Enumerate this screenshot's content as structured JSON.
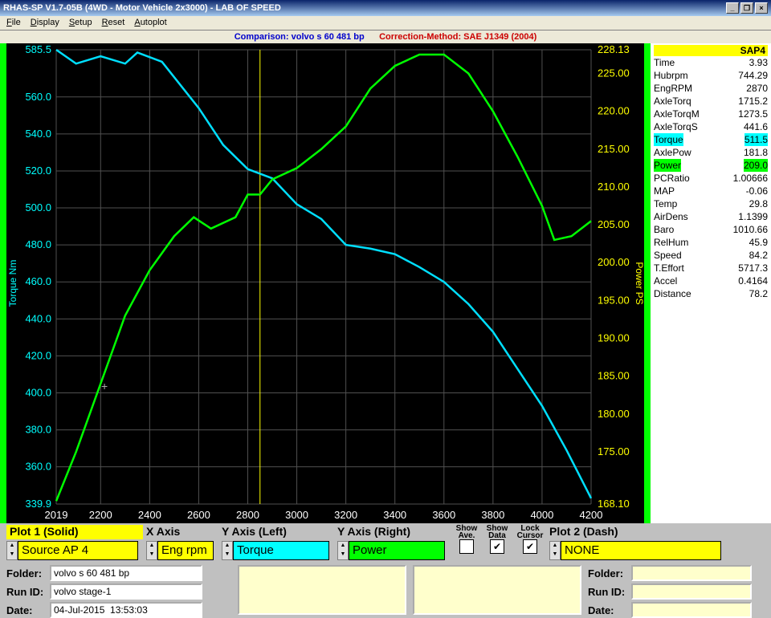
{
  "window": {
    "title": "RHAS-SP V1.7-05B  (4WD - Motor Vehicle 2x3000) - LAB OF SPEED"
  },
  "menu": [
    "File",
    "Display",
    "Setup",
    "Reset",
    "Autoplot"
  ],
  "info": {
    "comparison": "Comparison: volvo s 60 481 bp",
    "correction": "Correction-Method: SAE J1349 (2004)"
  },
  "chart": {
    "x_ticks": [
      2019,
      2200,
      2400,
      2600,
      2800,
      3000,
      3200,
      3400,
      3600,
      3800,
      4000,
      4200
    ],
    "left_axis": {
      "label": "Torque Nm",
      "color": "#00ffff",
      "ticks": [
        339.9,
        360.0,
        380.0,
        400.0,
        420.0,
        440.0,
        460.0,
        480.0,
        500.0,
        520.0,
        540.0,
        560.0,
        585.5
      ]
    },
    "right_axis": {
      "label": "Power PS",
      "color": "#ffff00",
      "ticks": [
        168.1,
        175.0,
        180.0,
        185.0,
        190.0,
        195.0,
        200.0,
        205.0,
        210.0,
        215.0,
        220.0,
        225.0,
        228.13
      ]
    },
    "cursor_x": 2850,
    "grid_color": "#505050",
    "torque": {
      "color": "#00dfff",
      "xmin": 2019,
      "xmax": 4200,
      "ymin": 339.9,
      "ymax": 585.5,
      "pts": [
        [
          2019,
          585.5
        ],
        [
          2100,
          578
        ],
        [
          2200,
          582
        ],
        [
          2300,
          578
        ],
        [
          2350,
          584
        ],
        [
          2450,
          579
        ],
        [
          2600,
          554
        ],
        [
          2700,
          534
        ],
        [
          2800,
          521
        ],
        [
          2900,
          516
        ],
        [
          3000,
          502
        ],
        [
          3100,
          494
        ],
        [
          3200,
          480
        ],
        [
          3300,
          478
        ],
        [
          3400,
          475
        ],
        [
          3500,
          468
        ],
        [
          3600,
          460
        ],
        [
          3700,
          448
        ],
        [
          3800,
          433
        ],
        [
          3900,
          413
        ],
        [
          4000,
          393
        ],
        [
          4100,
          369
        ],
        [
          4200,
          343
        ]
      ]
    },
    "power": {
      "color": "#00ff00",
      "xmin": 2019,
      "xmax": 4200,
      "ymin": 168.1,
      "ymax": 228.13,
      "pts": [
        [
          2019,
          168.5
        ],
        [
          2100,
          175
        ],
        [
          2200,
          184
        ],
        [
          2300,
          193
        ],
        [
          2400,
          199
        ],
        [
          2500,
          203.5
        ],
        [
          2580,
          206
        ],
        [
          2650,
          204.5
        ],
        [
          2750,
          206
        ],
        [
          2800,
          209
        ],
        [
          2850,
          209
        ],
        [
          2900,
          211
        ],
        [
          3000,
          212.5
        ],
        [
          3100,
          215
        ],
        [
          3200,
          218
        ],
        [
          3300,
          223
        ],
        [
          3400,
          226
        ],
        [
          3500,
          227.5
        ],
        [
          3600,
          227.5
        ],
        [
          3700,
          225
        ],
        [
          3800,
          220
        ],
        [
          3900,
          214
        ],
        [
          4000,
          207.5
        ],
        [
          4050,
          203
        ],
        [
          4120,
          203.5
        ],
        [
          4200,
          205.5
        ]
      ]
    }
  },
  "side": {
    "header": "SAP4",
    "rows": [
      {
        "l": "Time",
        "v": "3.93"
      },
      {
        "l": "Hubrpm",
        "v": "744.29"
      },
      {
        "l": "EngRPM",
        "v": "2870"
      },
      {
        "l": "AxleTorq",
        "v": "1715.2"
      },
      {
        "l": "AxleTorqM",
        "v": "1273.5"
      },
      {
        "l": "AxleTorqS",
        "v": "441.6"
      },
      {
        "l": "Torque",
        "v": "511.5",
        "hl": "c"
      },
      {
        "l": "AxlePow",
        "v": "181.8"
      },
      {
        "l": "Power",
        "v": "209.0",
        "hl": "g"
      },
      {
        "l": "PCRatio",
        "v": "1.00666"
      },
      {
        "l": "MAP",
        "v": "-0.06"
      },
      {
        "l": "Temp",
        "v": "29.8"
      },
      {
        "l": "AirDens",
        "v": "1.1399"
      },
      {
        "l": "Baro",
        "v": "1010.66"
      },
      {
        "l": "RelHum",
        "v": "45.9"
      },
      {
        "l": "Speed",
        "v": "84.2"
      },
      {
        "l": "T.Effort",
        "v": "5717.3"
      },
      {
        "l": "Accel",
        "v": "0.4164"
      },
      {
        "l": "Distance",
        "v": "78.2"
      }
    ]
  },
  "controls": {
    "plot1": {
      "title": "Plot 1 (Solid)",
      "source": "Source AP 4"
    },
    "xaxis": {
      "title": "X Axis",
      "val": "Eng rpm"
    },
    "yleft": {
      "title": "Y Axis (Left)",
      "val": "Torque"
    },
    "yright": {
      "title": "Y Axis (Right)",
      "val": "Power"
    },
    "showave": {
      "title": "Show\nAve.",
      "checked": false
    },
    "showdata": {
      "title": "Show\nData",
      "checked": true
    },
    "lockcursor": {
      "title": "Lock\nCursor",
      "checked": true
    },
    "plot2": {
      "title": "Plot 2 (Dash)",
      "source": "NONE"
    },
    "left": {
      "folder": "volvo s 60 481 bp",
      "runid": "volvo stage-1",
      "date": "04-Jul-2015  13:53:03"
    },
    "right": {
      "folder": "",
      "runid": "",
      "date": ""
    }
  }
}
